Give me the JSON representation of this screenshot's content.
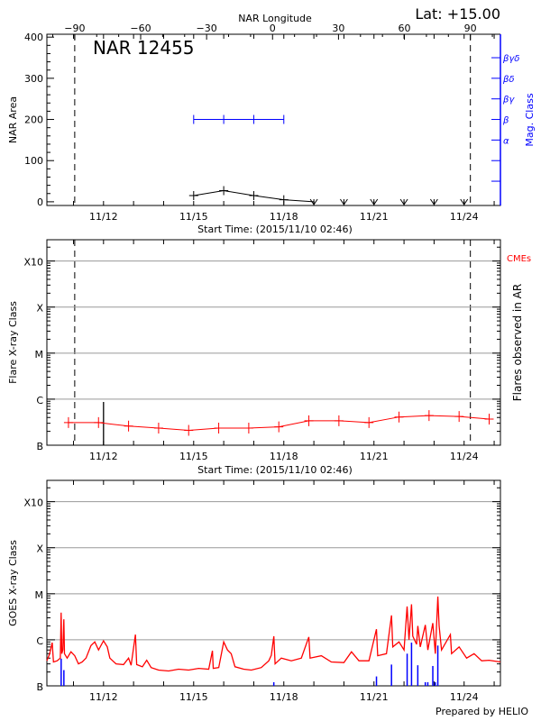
{
  "chart_data": [
    {
      "type": "line",
      "title": "NAR 12455",
      "top_xlabel": "NAR Longitude",
      "corner_label": "Lat: +15.00",
      "xlabel": "Start Time: (2015/11/10 02:46)",
      "ylabel": "NAR Area",
      "y2label": "Mag. Class",
      "xlim": [
        "2015-11-10T02:46",
        "2015-11-25T05:00"
      ],
      "x_tick_labels": [
        {
          "t": "2015-11-12T00:00",
          "label": "11/12"
        },
        {
          "t": "2015-11-15T00:00",
          "label": "11/15"
        },
        {
          "t": "2015-11-18T00:00",
          "label": "11/18"
        },
        {
          "t": "2015-11-21T00:00",
          "label": "11/21"
        },
        {
          "t": "2015-11-24T00:00",
          "label": "11/24"
        }
      ],
      "longitude_ticks": [
        -90,
        -60,
        -30,
        0,
        30,
        60,
        90
      ],
      "limb_crossings": [
        {
          "t": "2015-11-11T01:00",
          "longitude": -90
        },
        {
          "t": "2015-11-24T05:00",
          "longitude": 90
        }
      ],
      "ylim": [
        -9,
        407
      ],
      "y_ticks": [
        0,
        100,
        200,
        300,
        400
      ],
      "area_series": {
        "color": "#000000",
        "points": [
          {
            "t": "2015-11-15T00:00",
            "area": 15
          },
          {
            "t": "2015-11-16T00:00",
            "area": 27
          },
          {
            "t": "2015-11-17T00:00",
            "area": 15
          },
          {
            "t": "2015-11-18T00:00",
            "area": 5
          }
        ],
        "zero_markers": [
          "2015-11-19T00:00",
          "2015-11-20T00:00",
          "2015-11-21T00:00",
          "2015-11-22T00:00",
          "2015-11-23T00:00",
          "2015-11-24T00:00"
        ]
      },
      "mag_class_axis": {
        "color": "#0000ff",
        "ticks": [
          {
            "area": 50,
            "label": ""
          },
          {
            "area": 100,
            "label": ""
          },
          {
            "area": 150,
            "label": "α"
          },
          {
            "area": 200,
            "label": "β"
          },
          {
            "area": 250,
            "label": "βγ"
          },
          {
            "area": 300,
            "label": "βδ"
          },
          {
            "area": 350,
            "label": "βγδ"
          }
        ]
      },
      "mag_class_series": {
        "color": "#0000ff",
        "class": "β",
        "points": [
          "2015-11-15T00:00",
          "2015-11-16T00:00",
          "2015-11-17T00:00",
          "2015-11-18T00:00"
        ]
      }
    },
    {
      "type": "line",
      "xlabel": "Start Time: (2015/11/10 02:46)",
      "ylabel": "Flare X-ray Class",
      "y2label": "Flares observed in AR",
      "legend_label": "CMEs",
      "legend_color": "#ff0000",
      "y_scale": "log",
      "ylim": [
        1e-07,
        0.0029
      ],
      "y_ticks": [
        {
          "v": 1e-07,
          "label": "B"
        },
        {
          "v": 1e-06,
          "label": "C"
        },
        {
          "v": 1e-05,
          "label": "M"
        },
        {
          "v": 0.0001,
          "label": "X"
        },
        {
          "v": 0.001,
          "label": "X10"
        }
      ],
      "grid": true,
      "background_series": {
        "color": "#ff0000",
        "points": [
          {
            "t": "2015-11-10T20:00",
            "v": 3.1e-07
          },
          {
            "t": "2015-11-11T20:00",
            "v": 3.1e-07
          },
          {
            "t": "2015-11-12T20:00",
            "v": 2.6e-07
          },
          {
            "t": "2015-11-13T20:00",
            "v": 2.35e-07
          },
          {
            "t": "2015-11-14T20:00",
            "v": 2.1e-07
          },
          {
            "t": "2015-11-15T20:00",
            "v": 2.35e-07
          },
          {
            "t": "2015-11-16T20:00",
            "v": 2.35e-07
          },
          {
            "t": "2015-11-17T20:00",
            "v": 2.5e-07
          },
          {
            "t": "2015-11-18T20:00",
            "v": 3.4e-07
          },
          {
            "t": "2015-11-19T20:00",
            "v": 3.4e-07
          },
          {
            "t": "2015-11-20T20:00",
            "v": 3.1e-07
          },
          {
            "t": "2015-11-21T20:00",
            "v": 4.1e-07
          },
          {
            "t": "2015-11-22T20:00",
            "v": 4.4e-07
          },
          {
            "t": "2015-11-23T20:00",
            "v": 4.2e-07
          },
          {
            "t": "2015-11-24T20:00",
            "v": 3.7e-07
          }
        ]
      },
      "flares": [
        {
          "t": "2015-11-12T00:00",
          "v": 8.7e-07,
          "color": "#000000"
        }
      ]
    },
    {
      "type": "line",
      "ylabel": "GOES X-ray Class",
      "y_scale": "log",
      "ylim": [
        1e-07,
        0.0029
      ],
      "grid": true,
      "footer": "Prepared by HELIO",
      "goes_series": {
        "color": "#ff0000",
        "points": [
          [
            "2015-11-10T02:46",
            3.5e-07
          ],
          [
            "2015-11-10T05:00",
            5e-07
          ],
          [
            "2015-11-10T07:00",
            8.7e-07
          ],
          [
            "2015-11-10T08:00",
            3.3e-07
          ],
          [
            "2015-11-10T11:00",
            3.5e-07
          ],
          [
            "2015-11-10T13:30",
            4e-07
          ],
          [
            "2015-11-10T14:10",
            3.9e-06
          ],
          [
            "2015-11-10T14:40",
            5e-07
          ],
          [
            "2015-11-10T15:30",
            6e-07
          ],
          [
            "2015-11-10T16:20",
            2.8e-06
          ],
          [
            "2015-11-10T16:50",
            5e-07
          ],
          [
            "2015-11-10T19:00",
            4e-07
          ],
          [
            "2015-11-10T22:00",
            5.5e-07
          ],
          [
            "2015-11-11T01:00",
            4.5e-07
          ],
          [
            "2015-11-11T04:00",
            3e-07
          ],
          [
            "2015-11-11T07:00",
            3.3e-07
          ],
          [
            "2015-11-11T10:00",
            4e-07
          ],
          [
            "2015-11-11T14:00",
            7.5e-07
          ],
          [
            "2015-11-11T17:00",
            9e-07
          ],
          [
            "2015-11-11T20:00",
            6e-07
          ],
          [
            "2015-11-12T00:00",
            9.5e-07
          ],
          [
            "2015-11-12T03:00",
            7e-07
          ],
          [
            "2015-11-12T05:00",
            4e-07
          ],
          [
            "2015-11-12T10:00",
            3e-07
          ],
          [
            "2015-11-12T16:00",
            2.9e-07
          ],
          [
            "2015-11-12T20:00",
            4e-07
          ],
          [
            "2015-11-12T22:00",
            2.8e-07
          ],
          [
            "2015-11-13T01:30",
            1.3e-06
          ],
          [
            "2015-11-13T02:30",
            2.9e-07
          ],
          [
            "2015-11-13T07:00",
            2.6e-07
          ],
          [
            "2015-11-13T10:30",
            3.6e-07
          ],
          [
            "2015-11-13T14:00",
            2.5e-07
          ],
          [
            "2015-11-13T20:00",
            2.2e-07
          ],
          [
            "2015-11-14T04:00",
            2.1e-07
          ],
          [
            "2015-11-14T12:00",
            2.3e-07
          ],
          [
            "2015-11-14T20:00",
            2.2e-07
          ],
          [
            "2015-11-15T04:00",
            2.4e-07
          ],
          [
            "2015-11-15T12:00",
            2.3e-07
          ],
          [
            "2015-11-15T15:00",
            5.8e-07
          ],
          [
            "2015-11-15T15:40",
            2.4e-07
          ],
          [
            "2015-11-15T20:00",
            2.5e-07
          ],
          [
            "2015-11-16T00:00",
            9e-07
          ],
          [
            "2015-11-16T03:00",
            6e-07
          ],
          [
            "2015-11-16T06:00",
            5e-07
          ],
          [
            "2015-11-16T09:00",
            2.6e-07
          ],
          [
            "2015-11-16T16:00",
            2.3e-07
          ],
          [
            "2015-11-16T22:00",
            2.2e-07
          ],
          [
            "2015-11-17T06:00",
            2.5e-07
          ],
          [
            "2015-11-17T12:00",
            3.5e-07
          ],
          [
            "2015-11-17T14:00",
            4.6e-07
          ],
          [
            "2015-11-17T16:00",
            1.2e-06
          ],
          [
            "2015-11-17T17:00",
            3e-07
          ],
          [
            "2015-11-17T22:00",
            4e-07
          ],
          [
            "2015-11-18T06:00",
            3.5e-07
          ],
          [
            "2015-11-18T14:00",
            4e-07
          ],
          [
            "2015-11-18T20:00",
            1.15e-06
          ],
          [
            "2015-11-18T21:00",
            4e-07
          ],
          [
            "2015-11-19T06:00",
            4.5e-07
          ],
          [
            "2015-11-19T14:00",
            3.3e-07
          ],
          [
            "2015-11-20T00:00",
            3.2e-07
          ],
          [
            "2015-11-20T06:00",
            5.5e-07
          ],
          [
            "2015-11-20T12:00",
            3.5e-07
          ],
          [
            "2015-11-20T20:00",
            3.5e-07
          ],
          [
            "2015-11-21T02:00",
            1.7e-06
          ],
          [
            "2015-11-21T03:00",
            4.5e-07
          ],
          [
            "2015-11-21T10:00",
            5e-07
          ],
          [
            "2015-11-21T14:00",
            3.4e-06
          ],
          [
            "2015-11-21T15:00",
            7e-07
          ],
          [
            "2015-11-21T20:00",
            9e-07
          ],
          [
            "2015-11-22T00:00",
            6e-07
          ],
          [
            "2015-11-22T02:30",
            5.3e-06
          ],
          [
            "2015-11-22T04:00",
            1e-06
          ],
          [
            "2015-11-22T06:00",
            5.9e-06
          ],
          [
            "2015-11-22T07:00",
            1.2e-06
          ],
          [
            "2015-11-22T10:00",
            8e-07
          ],
          [
            "2015-11-22T11:00",
            2e-06
          ],
          [
            "2015-11-22T13:00",
            7e-07
          ],
          [
            "2015-11-22T17:00",
            2.1e-06
          ],
          [
            "2015-11-22T19:00",
            6e-07
          ],
          [
            "2015-11-22T23:00",
            2.3e-06
          ],
          [
            "2015-11-23T01:00",
            5e-07
          ],
          [
            "2015-11-23T03:00",
            8.7e-06
          ],
          [
            "2015-11-23T04:00",
            2e-06
          ],
          [
            "2015-11-23T06:00",
            6e-07
          ],
          [
            "2015-11-23T13:00",
            1.3e-06
          ],
          [
            "2015-11-23T14:00",
            5e-07
          ],
          [
            "2015-11-23T20:00",
            7e-07
          ],
          [
            "2015-11-24T02:00",
            4e-07
          ],
          [
            "2015-11-24T08:00",
            5e-07
          ],
          [
            "2015-11-24T14:00",
            3.5e-07
          ],
          [
            "2015-11-24T20:00",
            3.6e-07
          ],
          [
            "2015-11-25T05:00",
            3.3e-07
          ]
        ]
      },
      "flare_markers": {
        "color": "#0000ff",
        "points": [
          [
            "2015-11-10T14:10",
            3.9e-07
          ],
          [
            "2015-11-10T16:20",
            2.2e-07
          ],
          [
            "2015-11-17T16:00",
            1.2e-07
          ],
          [
            "2015-11-21T02:00",
            1.6e-07
          ],
          [
            "2015-11-21T14:00",
            2.9e-07
          ],
          [
            "2015-11-22T02:30",
            5e-07
          ],
          [
            "2015-11-22T06:00",
            8.7e-07
          ],
          [
            "2015-11-22T11:00",
            2.8e-07
          ],
          [
            "2015-11-22T17:00",
            1.2e-07
          ],
          [
            "2015-11-22T19:00",
            1.2e-07
          ],
          [
            "2015-11-22T23:00",
            2.7e-07
          ],
          [
            "2015-11-23T01:00",
            1.2e-07
          ],
          [
            "2015-11-23T03:00",
            7.5e-07
          ]
        ]
      }
    }
  ]
}
